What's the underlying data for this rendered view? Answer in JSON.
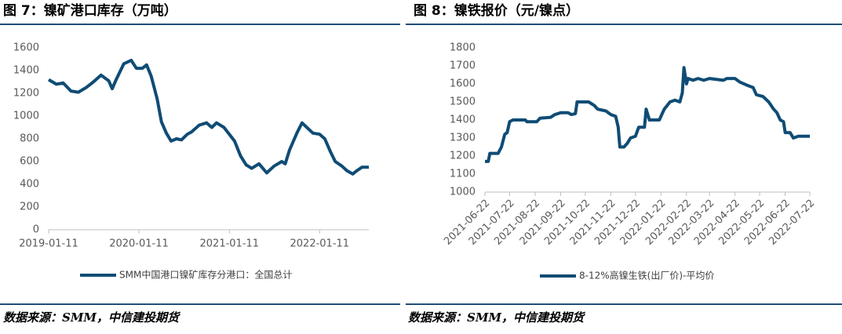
{
  "chart_data": [
    {
      "type": "line",
      "title": "图 7：镍矿港口库存（万吨）",
      "source": "数据来源：SMM，中信建投期货",
      "x": [
        "2019-01-11",
        "2019-02-11",
        "2019-03-11",
        "2019-04-11",
        "2019-05-11",
        "2019-06-11",
        "2019-07-11",
        "2019-08-11",
        "2019-09-11",
        "2019-09-25",
        "2019-10-11",
        "2019-11-11",
        "2019-12-11",
        "2020-01-01",
        "2020-01-25",
        "2020-02-11",
        "2020-03-01",
        "2020-03-25",
        "2020-04-11",
        "2020-05-01",
        "2020-05-20",
        "2020-06-11",
        "2020-07-01",
        "2020-07-25",
        "2020-08-11",
        "2020-09-11",
        "2020-10-11",
        "2020-11-01",
        "2020-11-20",
        "2020-12-20",
        "2021-02-01",
        "2021-02-25",
        "2021-03-20",
        "2021-04-11",
        "2021-05-11",
        "2021-06-11",
        "2021-07-11",
        "2021-08-11",
        "2021-08-25",
        "2021-09-11",
        "2021-10-11",
        "2021-11-01",
        "2021-11-25",
        "2021-12-15",
        "2022-01-11",
        "2022-02-01",
        "2022-02-25",
        "2022-03-15",
        "2022-04-11",
        "2022-05-01",
        "2022-05-25",
        "2022-06-11",
        "2022-07-01",
        "2022-07-29"
      ],
      "series": [
        {
          "name": "SMM中国港口镍矿库存分港口：全国总计",
          "color": "#0f4c75",
          "values": [
            1320,
            1280,
            1290,
            1220,
            1210,
            1250,
            1300,
            1360,
            1310,
            1240,
            1320,
            1460,
            1490,
            1420,
            1420,
            1450,
            1350,
            1150,
            950,
            850,
            780,
            800,
            790,
            840,
            860,
            920,
            940,
            900,
            940,
            900,
            780,
            650,
            570,
            540,
            580,
            500,
            560,
            600,
            580,
            700,
            850,
            940,
            890,
            850,
            840,
            800,
            680,
            600,
            560,
            520,
            490,
            520,
            550,
            550
          ]
        }
      ],
      "xlim": [
        "2019-01-11",
        "2022-07-29"
      ],
      "xticks": [
        "2019-01-11",
        "2020-01-11",
        "2021-01-11",
        "2022-01-11"
      ],
      "ylim": [
        0,
        1600
      ],
      "yticks": [
        0,
        200,
        400,
        600,
        800,
        1000,
        1200,
        1400,
        1600
      ],
      "grid": false,
      "legend": "bottom"
    },
    {
      "type": "line",
      "title": "图 8：镍铁报价（元/镍点）",
      "source": "数据来源：SMM，中信建投期货",
      "x": [
        "2021-06-22",
        "2021-06-26",
        "2021-06-28",
        "2021-07-08",
        "2021-07-12",
        "2021-07-16",
        "2021-07-19",
        "2021-07-22",
        "2021-07-26",
        "2021-08-10",
        "2021-08-12",
        "2021-08-24",
        "2021-08-28",
        "2021-09-10",
        "2021-09-15",
        "2021-09-22",
        "2021-10-01",
        "2021-10-05",
        "2021-10-10",
        "2021-10-12",
        "2021-10-26",
        "2021-11-02",
        "2021-11-06",
        "2021-11-16",
        "2021-11-22",
        "2021-11-28",
        "2021-12-01",
        "2021-12-03",
        "2021-12-08",
        "2021-12-12",
        "2021-12-16",
        "2021-12-22",
        "2021-12-26",
        "2022-01-02",
        "2022-01-04",
        "2022-01-08",
        "2022-01-20",
        "2022-01-26",
        "2022-02-02",
        "2022-02-08",
        "2022-02-14",
        "2022-02-17",
        "2022-02-19",
        "2022-02-22",
        "2022-02-24",
        "2022-03-02",
        "2022-03-08",
        "2022-03-15",
        "2022-03-22",
        "2022-04-08",
        "2022-04-12",
        "2022-04-22",
        "2022-04-28",
        "2022-05-08",
        "2022-05-14",
        "2022-05-18",
        "2022-05-26",
        "2022-06-02",
        "2022-06-08",
        "2022-06-12",
        "2022-06-16",
        "2022-06-20",
        "2022-06-22",
        "2022-06-28",
        "2022-07-02",
        "2022-07-08",
        "2022-07-22"
      ],
      "series": [
        {
          "name": "8-12%高镍生铁(出厂价)-平均价",
          "color": "#0f4c75",
          "values": [
            1170,
            1170,
            1215,
            1215,
            1250,
            1320,
            1330,
            1390,
            1400,
            1400,
            1390,
            1390,
            1410,
            1415,
            1430,
            1440,
            1440,
            1430,
            1435,
            1500,
            1500,
            1480,
            1460,
            1450,
            1430,
            1420,
            1360,
            1250,
            1250,
            1270,
            1300,
            1310,
            1360,
            1360,
            1460,
            1400,
            1400,
            1460,
            1500,
            1510,
            1500,
            1550,
            1690,
            1600,
            1630,
            1620,
            1630,
            1620,
            1630,
            1620,
            1630,
            1630,
            1610,
            1590,
            1580,
            1540,
            1530,
            1500,
            1460,
            1440,
            1400,
            1390,
            1330,
            1330,
            1300,
            1310,
            1310
          ]
        }
      ],
      "xlim": [
        "2021-06-22",
        "2022-07-22"
      ],
      "xticks": [
        "2021-06-22",
        "2021-07-22",
        "2021-08-22",
        "2021-09-22",
        "2021-10-22",
        "2021-11-22",
        "2021-12-22",
        "2022-01-22",
        "2022-02-22",
        "2022-03-22",
        "2022-04-22",
        "2022-05-22",
        "2022-06-22",
        "2022-07-22"
      ],
      "ylim": [
        1000,
        1800
      ],
      "yticks": [
        1000,
        1100,
        1200,
        1300,
        1400,
        1500,
        1600,
        1700,
        1800
      ],
      "grid": false,
      "legend": "bottom"
    }
  ]
}
